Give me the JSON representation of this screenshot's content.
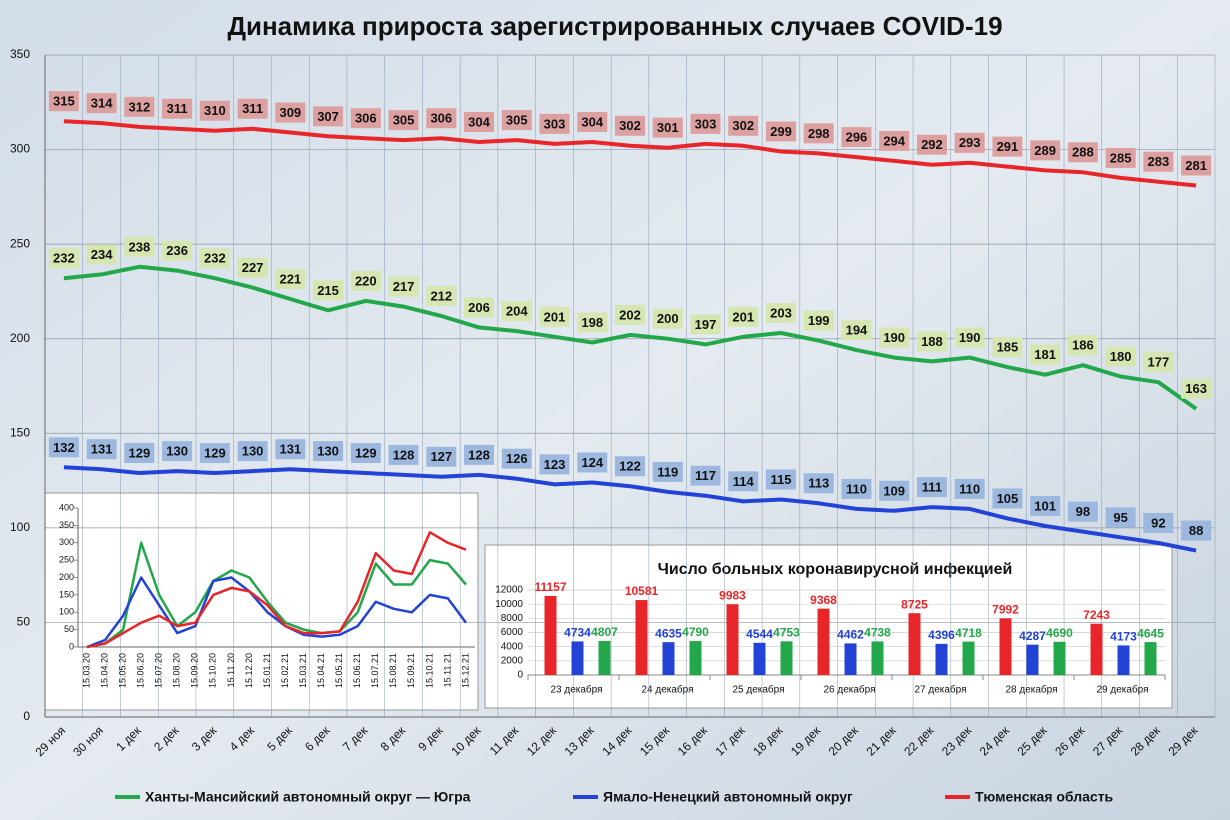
{
  "chart_data": [
    {
      "type": "line",
      "title": "Динамика прироста зарегистрированных случаев COVID-19",
      "categories": [
        "29 ноя",
        "30 ноя",
        "1 дек",
        "2 дек",
        "3 дек",
        "4 дек",
        "5 дек",
        "6 дек",
        "7 дек",
        "8 дек",
        "9 дек",
        "10 дек",
        "11 дек",
        "12 дек",
        "13 дек",
        "14 дек",
        "15 дек",
        "16 дек",
        "17 дек",
        "18 дек",
        "19 дек",
        "20 дек",
        "21 дек",
        "22 дек",
        "23 дек",
        "24 дек",
        "25 дек",
        "26 дек",
        "27 дек",
        "28 дек",
        "29 дек"
      ],
      "series": [
        {
          "name": "Ханты-Мансийский автономный округ — Югра",
          "color": "#22a84a",
          "label_color": "#d6e6b0",
          "values": [
            232,
            234,
            238,
            236,
            232,
            227,
            221,
            215,
            220,
            217,
            212,
            206,
            204,
            201,
            198,
            202,
            200,
            197,
            201,
            203,
            199,
            194,
            190,
            188,
            190,
            185,
            181,
            186,
            180,
            177,
            163
          ]
        },
        {
          "name": "Ямало-Ненецкий автономный округ",
          "color": "#2343d6",
          "label_color": "#9db8de",
          "values": [
            132,
            131,
            129,
            130,
            129,
            130,
            131,
            130,
            129,
            128,
            127,
            128,
            126,
            123,
            124,
            122,
            119,
            117,
            114,
            115,
            113,
            110,
            109,
            111,
            110,
            105,
            101,
            98,
            95,
            92,
            88
          ]
        },
        {
          "name": "Тюменская область",
          "color": "#e8262a",
          "label_color": "#dda0a0",
          "values": [
            315,
            314,
            312,
            311,
            310,
            311,
            309,
            307,
            306,
            305,
            306,
            304,
            305,
            303,
            304,
            302,
            301,
            303,
            302,
            299,
            298,
            296,
            294,
            292,
            293,
            291,
            289,
            288,
            285,
            283,
            281
          ]
        }
      ],
      "ylim": [
        0,
        350
      ],
      "yticks": [
        0,
        50,
        100,
        150,
        200,
        250,
        300,
        350
      ],
      "grid": true,
      "legend": "bottom"
    },
    {
      "type": "line",
      "categories": [
        "15.03.20",
        "15.04.20",
        "15.05.20",
        "15.06.20",
        "15.07.20",
        "15.08.20",
        "15.09.20",
        "15.10.20",
        "15.11.20",
        "15.12.20",
        "15.01.21",
        "15.02.21",
        "15.03.21",
        "15.04.21",
        "15.05.21",
        "15.06.21",
        "15.07.21",
        "15.08.21",
        "15.09.21",
        "15.10.21",
        "15.11.21",
        "15.12.21"
      ],
      "series": [
        {
          "color": "#22a84a",
          "values": [
            0,
            10,
            50,
            300,
            150,
            60,
            100,
            190,
            220,
            200,
            130,
            70,
            50,
            40,
            45,
            100,
            240,
            180,
            180,
            250,
            240,
            180
          ]
        },
        {
          "color": "#2343d6",
          "values": [
            0,
            20,
            90,
            200,
            120,
            40,
            60,
            190,
            200,
            160,
            100,
            60,
            35,
            30,
            35,
            60,
            130,
            110,
            100,
            150,
            140,
            70
          ]
        },
        {
          "color": "#e8262a",
          "values": [
            0,
            10,
            40,
            70,
            90,
            60,
            70,
            150,
            170,
            160,
            120,
            60,
            40,
            40,
            45,
            130,
            270,
            220,
            210,
            330,
            300,
            280
          ]
        }
      ],
      "ylim": [
        0,
        400
      ],
      "yticks": [
        0,
        50,
        100,
        150,
        200,
        250,
        300,
        350,
        400
      ]
    },
    {
      "type": "bar",
      "title": "Число больных коронавирусной  инфекцией",
      "categories": [
        "23 декабря",
        "24 декабря",
        "25 декабря",
        "26 декабря",
        "27 декабря",
        "28 декабря",
        "29 декабря"
      ],
      "series": [
        {
          "color": "#e8262a",
          "values": [
            11157,
            10581,
            9983,
            9368,
            8725,
            7992,
            7243
          ]
        },
        {
          "color": "#2343d6",
          "values": [
            4734,
            4635,
            4544,
            4462,
            4396,
            4287,
            4173
          ]
        },
        {
          "color": "#22a84a",
          "values": [
            4807,
            4790,
            4753,
            4738,
            4718,
            4690,
            4645
          ]
        }
      ],
      "ylim": [
        0,
        12000
      ],
      "yticks": [
        0,
        2000,
        4000,
        6000,
        8000,
        10000,
        12000
      ],
      "grid": true
    }
  ]
}
